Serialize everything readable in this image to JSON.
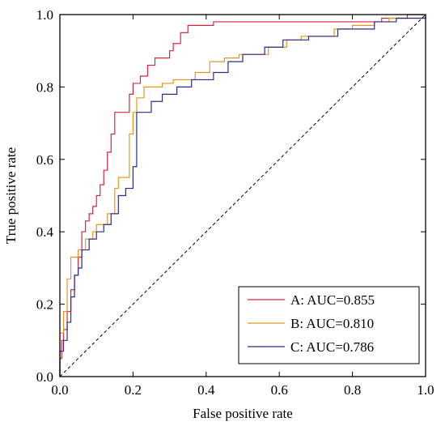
{
  "chart_data": {
    "type": "line",
    "title": "",
    "xlabel": "False positive rate",
    "ylabel": "True positive rate",
    "xlim": [
      0,
      1
    ],
    "ylim": [
      0,
      1
    ],
    "xticks": [
      "0.0",
      "0.2",
      "0.4",
      "0.6",
      "0.8",
      "1.0"
    ],
    "yticks": [
      "0.0",
      "0.2",
      "0.4",
      "0.6",
      "0.8",
      "1.0"
    ],
    "grid": false,
    "legend_position": "bottom-right",
    "reference_line": {
      "style": "dashed",
      "color": "#000000",
      "from": [
        0,
        0
      ],
      "to": [
        1,
        1
      ]
    },
    "series": [
      {
        "name": "A: AUC=0.855",
        "color": "#d7263d",
        "points": [
          [
            0.0,
            0.0
          ],
          [
            0.0,
            0.05
          ],
          [
            0.005,
            0.05
          ],
          [
            0.005,
            0.1
          ],
          [
            0.01,
            0.1
          ],
          [
            0.01,
            0.13
          ],
          [
            0.02,
            0.13
          ],
          [
            0.02,
            0.18
          ],
          [
            0.03,
            0.18
          ],
          [
            0.03,
            0.24
          ],
          [
            0.04,
            0.24
          ],
          [
            0.04,
            0.28
          ],
          [
            0.05,
            0.28
          ],
          [
            0.05,
            0.33
          ],
          [
            0.06,
            0.33
          ],
          [
            0.06,
            0.4
          ],
          [
            0.07,
            0.4
          ],
          [
            0.07,
            0.43
          ],
          [
            0.08,
            0.43
          ],
          [
            0.08,
            0.45
          ],
          [
            0.09,
            0.45
          ],
          [
            0.09,
            0.47
          ],
          [
            0.1,
            0.47
          ],
          [
            0.1,
            0.5
          ],
          [
            0.11,
            0.5
          ],
          [
            0.11,
            0.53
          ],
          [
            0.12,
            0.53
          ],
          [
            0.12,
            0.57
          ],
          [
            0.13,
            0.57
          ],
          [
            0.13,
            0.62
          ],
          [
            0.14,
            0.62
          ],
          [
            0.14,
            0.67
          ],
          [
            0.15,
            0.67
          ],
          [
            0.15,
            0.73
          ],
          [
            0.19,
            0.73
          ],
          [
            0.19,
            0.78
          ],
          [
            0.2,
            0.78
          ],
          [
            0.2,
            0.81
          ],
          [
            0.22,
            0.81
          ],
          [
            0.22,
            0.83
          ],
          [
            0.24,
            0.83
          ],
          [
            0.24,
            0.86
          ],
          [
            0.26,
            0.86
          ],
          [
            0.26,
            0.88
          ],
          [
            0.3,
            0.88
          ],
          [
            0.3,
            0.9
          ],
          [
            0.31,
            0.9
          ],
          [
            0.31,
            0.92
          ],
          [
            0.33,
            0.92
          ],
          [
            0.33,
            0.95
          ],
          [
            0.35,
            0.95
          ],
          [
            0.35,
            0.97
          ],
          [
            0.42,
            0.97
          ],
          [
            0.42,
            0.98
          ],
          [
            0.88,
            0.98
          ],
          [
            0.88,
            0.99
          ],
          [
            0.95,
            0.99
          ],
          [
            0.95,
            1.0
          ],
          [
            1.0,
            1.0
          ]
        ]
      },
      {
        "name": "B: AUC=0.810",
        "color": "#e8971e",
        "points": [
          [
            0.0,
            0.0
          ],
          [
            0.0,
            0.12
          ],
          [
            0.01,
            0.12
          ],
          [
            0.01,
            0.18
          ],
          [
            0.02,
            0.18
          ],
          [
            0.02,
            0.27
          ],
          [
            0.03,
            0.27
          ],
          [
            0.03,
            0.33
          ],
          [
            0.05,
            0.33
          ],
          [
            0.05,
            0.35
          ],
          [
            0.07,
            0.35
          ],
          [
            0.07,
            0.38
          ],
          [
            0.09,
            0.38
          ],
          [
            0.09,
            0.4
          ],
          [
            0.1,
            0.4
          ],
          [
            0.1,
            0.42
          ],
          [
            0.13,
            0.42
          ],
          [
            0.13,
            0.45
          ],
          [
            0.15,
            0.45
          ],
          [
            0.15,
            0.52
          ],
          [
            0.16,
            0.52
          ],
          [
            0.16,
            0.55
          ],
          [
            0.19,
            0.55
          ],
          [
            0.19,
            0.67
          ],
          [
            0.2,
            0.67
          ],
          [
            0.2,
            0.73
          ],
          [
            0.21,
            0.73
          ],
          [
            0.21,
            0.77
          ],
          [
            0.23,
            0.77
          ],
          [
            0.23,
            0.8
          ],
          [
            0.28,
            0.8
          ],
          [
            0.28,
            0.81
          ],
          [
            0.31,
            0.81
          ],
          [
            0.31,
            0.82
          ],
          [
            0.37,
            0.82
          ],
          [
            0.37,
            0.84
          ],
          [
            0.41,
            0.84
          ],
          [
            0.41,
            0.87
          ],
          [
            0.45,
            0.87
          ],
          [
            0.45,
            0.88
          ],
          [
            0.49,
            0.88
          ],
          [
            0.49,
            0.89
          ],
          [
            0.57,
            0.89
          ],
          [
            0.57,
            0.91
          ],
          [
            0.62,
            0.91
          ],
          [
            0.62,
            0.93
          ],
          [
            0.66,
            0.93
          ],
          [
            0.66,
            0.94
          ],
          [
            0.75,
            0.94
          ],
          [
            0.75,
            0.96
          ],
          [
            0.8,
            0.96
          ],
          [
            0.8,
            0.97
          ],
          [
            0.86,
            0.97
          ],
          [
            0.86,
            0.98
          ],
          [
            0.9,
            0.98
          ],
          [
            0.9,
            0.99
          ],
          [
            1.0,
            0.99
          ],
          [
            1.0,
            1.0
          ]
        ]
      },
      {
        "name": "C: AUC=0.786",
        "color": "#2b2b8f",
        "points": [
          [
            0.0,
            0.0
          ],
          [
            0.0,
            0.07
          ],
          [
            0.01,
            0.07
          ],
          [
            0.01,
            0.1
          ],
          [
            0.02,
            0.1
          ],
          [
            0.02,
            0.15
          ],
          [
            0.03,
            0.15
          ],
          [
            0.03,
            0.22
          ],
          [
            0.04,
            0.22
          ],
          [
            0.04,
            0.28
          ],
          [
            0.05,
            0.28
          ],
          [
            0.05,
            0.3
          ],
          [
            0.06,
            0.3
          ],
          [
            0.06,
            0.35
          ],
          [
            0.08,
            0.35
          ],
          [
            0.08,
            0.38
          ],
          [
            0.1,
            0.38
          ],
          [
            0.1,
            0.4
          ],
          [
            0.12,
            0.4
          ],
          [
            0.12,
            0.42
          ],
          [
            0.14,
            0.42
          ],
          [
            0.14,
            0.45
          ],
          [
            0.16,
            0.45
          ],
          [
            0.16,
            0.5
          ],
          [
            0.18,
            0.5
          ],
          [
            0.18,
            0.52
          ],
          [
            0.2,
            0.52
          ],
          [
            0.2,
            0.58
          ],
          [
            0.21,
            0.58
          ],
          [
            0.21,
            0.73
          ],
          [
            0.25,
            0.73
          ],
          [
            0.25,
            0.76
          ],
          [
            0.28,
            0.76
          ],
          [
            0.28,
            0.78
          ],
          [
            0.32,
            0.78
          ],
          [
            0.32,
            0.8
          ],
          [
            0.36,
            0.8
          ],
          [
            0.36,
            0.82
          ],
          [
            0.42,
            0.82
          ],
          [
            0.42,
            0.84
          ],
          [
            0.46,
            0.84
          ],
          [
            0.46,
            0.87
          ],
          [
            0.5,
            0.87
          ],
          [
            0.5,
            0.89
          ],
          [
            0.56,
            0.89
          ],
          [
            0.56,
            0.91
          ],
          [
            0.61,
            0.91
          ],
          [
            0.61,
            0.93
          ],
          [
            0.68,
            0.93
          ],
          [
            0.68,
            0.94
          ],
          [
            0.76,
            0.94
          ],
          [
            0.76,
            0.96
          ],
          [
            0.86,
            0.96
          ],
          [
            0.86,
            0.98
          ],
          [
            0.92,
            0.98
          ],
          [
            0.92,
            0.99
          ],
          [
            1.0,
            0.99
          ],
          [
            1.0,
            1.0
          ]
        ]
      }
    ]
  }
}
